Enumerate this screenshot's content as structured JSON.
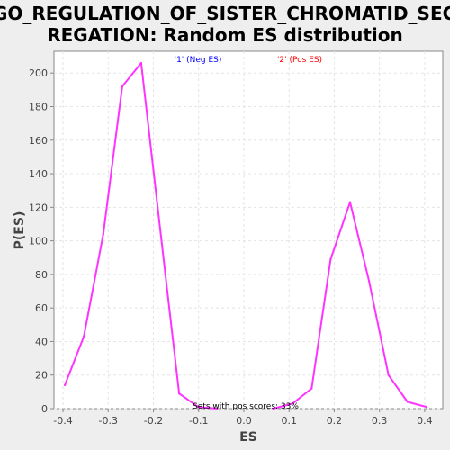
{
  "chart_data": {
    "type": "line",
    "title": [
      "GO_REGULATION_OF_SISTER_CHROMATID_SEG",
      "REGATION: Random ES distribution"
    ],
    "xlabel": "ES",
    "ylabel": "P(ES)",
    "xlim": [
      -0.42,
      0.44
    ],
    "ylim": [
      0,
      213
    ],
    "xticks": [
      -0.4,
      -0.3,
      -0.2,
      -0.1,
      0.0,
      0.1,
      0.2,
      0.3,
      0.4
    ],
    "xtick_labels": [
      "-0.4",
      "-0.3",
      "-0.2",
      "-0.1",
      "0.0",
      "0.1",
      "0.2",
      "0.3",
      "0.4"
    ],
    "yticks": [
      0,
      20,
      40,
      60,
      80,
      100,
      120,
      140,
      160,
      180,
      200
    ],
    "yticks_labels": [
      "0",
      "20",
      "40",
      "60",
      "80",
      "100",
      "120",
      "140",
      "160",
      "180",
      "200"
    ],
    "grid": true,
    "series": [
      {
        "name": "'1' (Neg ES)",
        "color": "#ff33ff",
        "legend_color": "#0000ff",
        "x": [
          -0.396,
          -0.354,
          -0.311,
          -0.269,
          -0.227,
          -0.185,
          -0.143,
          -0.101,
          -0.059
        ],
        "y": [
          14,
          43,
          104,
          192,
          206,
          107,
          9,
          1,
          0
        ]
      },
      {
        "name": "'2' (Pos ES)",
        "color": "#ff33ff",
        "legend_color": "#ff0000",
        "x": [
          0.065,
          0.108,
          0.15,
          0.192,
          0.235,
          0.277,
          0.32,
          0.362,
          0.404
        ],
        "y": [
          0,
          3,
          12,
          89,
          123,
          76,
          20,
          4,
          1
        ]
      }
    ],
    "legend_placement": "top",
    "annotation": "Sets with pos scores: 33%"
  }
}
